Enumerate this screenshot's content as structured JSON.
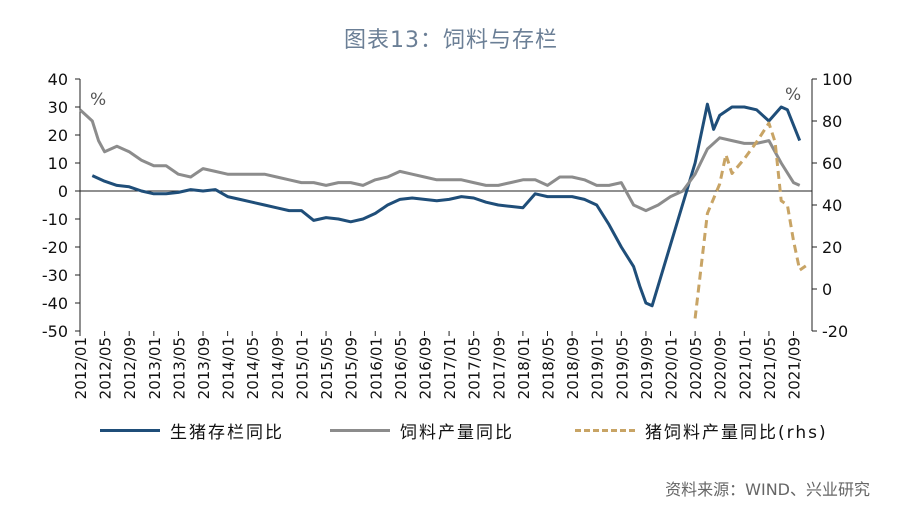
{
  "title": "图表13：饲料与存栏",
  "source": "资料来源：WIND、兴业研究",
  "colors": {
    "pig_stock": "#1f4e79",
    "feed_output": "#8c8c8c",
    "pig_feed_output": "#c8a465",
    "axis": "#222222"
  },
  "chart_data": {
    "type": "line",
    "left_axis": {
      "ylim": [
        -50,
        40
      ],
      "ticks": [
        -50,
        -40,
        -30,
        -20,
        -10,
        0,
        10,
        20,
        30,
        40
      ],
      "unit_label": "%"
    },
    "right_axis": {
      "ylim": [
        -20,
        100
      ],
      "ticks": [
        -20,
        0,
        20,
        40,
        60,
        80,
        100
      ],
      "unit_label": "%"
    },
    "x_tick_labels": [
      "2012/01",
      "2012/05",
      "2012/09",
      "2013/01",
      "2013/05",
      "2013/09",
      "2014/01",
      "2014/05",
      "2014/09",
      "2015/01",
      "2015/05",
      "2015/09",
      "2016/01",
      "2016/05",
      "2016/09",
      "2017/01",
      "2017/05",
      "2017/09",
      "2018/01",
      "2018/05",
      "2018/09",
      "2019/01",
      "2019/05",
      "2019/09",
      "2020/01",
      "2020/05",
      "2020/09",
      "2021/01",
      "2021/05",
      "2021/09"
    ],
    "series": [
      {
        "name": "生猪存栏同比",
        "axis": "left",
        "style": "solid",
        "points": [
          [
            "2012/03",
            5.5
          ],
          [
            "2012/05",
            3.5
          ],
          [
            "2012/07",
            2
          ],
          [
            "2012/09",
            1.5
          ],
          [
            "2012/11",
            0
          ],
          [
            "2013/01",
            -1
          ],
          [
            "2013/03",
            -1
          ],
          [
            "2013/05",
            -0.5
          ],
          [
            "2013/07",
            0.5
          ],
          [
            "2013/09",
            0
          ],
          [
            "2013/11",
            0.5
          ],
          [
            "2014/01",
            -2
          ],
          [
            "2014/03",
            -3
          ],
          [
            "2014/05",
            -4
          ],
          [
            "2014/07",
            -5
          ],
          [
            "2014/09",
            -6
          ],
          [
            "2014/11",
            -7
          ],
          [
            "2015/01",
            -7
          ],
          [
            "2015/03",
            -10.5
          ],
          [
            "2015/05",
            -9.5
          ],
          [
            "2015/07",
            -10
          ],
          [
            "2015/09",
            -11
          ],
          [
            "2015/11",
            -10
          ],
          [
            "2016/01",
            -8
          ],
          [
            "2016/03",
            -5
          ],
          [
            "2016/05",
            -3
          ],
          [
            "2016/07",
            -2.5
          ],
          [
            "2016/09",
            -3
          ],
          [
            "2016/11",
            -3.5
          ],
          [
            "2017/01",
            -3
          ],
          [
            "2017/03",
            -2
          ],
          [
            "2017/05",
            -2.5
          ],
          [
            "2017/07",
            -4
          ],
          [
            "2017/09",
            -5
          ],
          [
            "2017/11",
            -5.5
          ],
          [
            "2018/01",
            -6
          ],
          [
            "2018/03",
            -1
          ],
          [
            "2018/05",
            -2
          ],
          [
            "2018/07",
            -2
          ],
          [
            "2018/09",
            -2
          ],
          [
            "2018/11",
            -3
          ],
          [
            "2019/01",
            -5
          ],
          [
            "2019/03",
            -12
          ],
          [
            "2019/05",
            -20
          ],
          [
            "2019/07",
            -27
          ],
          [
            "2019/08",
            -34
          ],
          [
            "2019/09",
            -40
          ],
          [
            "2019/10",
            -41
          ],
          [
            "2020/05",
            10
          ],
          [
            "2020/07",
            31
          ],
          [
            "2020/08",
            22
          ],
          [
            "2020/09",
            27
          ],
          [
            "2020/11",
            30
          ],
          [
            "2021/01",
            30
          ],
          [
            "2021/03",
            29
          ],
          [
            "2021/05",
            25
          ],
          [
            "2021/07",
            30
          ],
          [
            "2021/08",
            29
          ],
          [
            "2021/10",
            18
          ]
        ]
      },
      {
        "name": "饲料产量同比",
        "axis": "left",
        "style": "solid",
        "points": [
          [
            "2012/01",
            29
          ],
          [
            "2012/02",
            27
          ],
          [
            "2012/03",
            25
          ],
          [
            "2012/04",
            18
          ],
          [
            "2012/05",
            14
          ],
          [
            "2012/07",
            16
          ],
          [
            "2012/09",
            14
          ],
          [
            "2012/11",
            11
          ],
          [
            "2013/01",
            9
          ],
          [
            "2013/03",
            9
          ],
          [
            "2013/05",
            6
          ],
          [
            "2013/07",
            5
          ],
          [
            "2013/09",
            8
          ],
          [
            "2013/11",
            7
          ],
          [
            "2014/01",
            6
          ],
          [
            "2014/03",
            6
          ],
          [
            "2014/05",
            6
          ],
          [
            "2014/07",
            6
          ],
          [
            "2014/09",
            5
          ],
          [
            "2014/11",
            4
          ],
          [
            "2015/01",
            3
          ],
          [
            "2015/03",
            3
          ],
          [
            "2015/05",
            2
          ],
          [
            "2015/07",
            3
          ],
          [
            "2015/09",
            3
          ],
          [
            "2015/11",
            2
          ],
          [
            "2016/01",
            4
          ],
          [
            "2016/03",
            5
          ],
          [
            "2016/05",
            7
          ],
          [
            "2016/07",
            6
          ],
          [
            "2016/09",
            5
          ],
          [
            "2016/11",
            4
          ],
          [
            "2017/01",
            4
          ],
          [
            "2017/03",
            4
          ],
          [
            "2017/05",
            3
          ],
          [
            "2017/07",
            2
          ],
          [
            "2017/09",
            2
          ],
          [
            "2017/11",
            3
          ],
          [
            "2018/01",
            4
          ],
          [
            "2018/03",
            4
          ],
          [
            "2018/05",
            2
          ],
          [
            "2018/07",
            5
          ],
          [
            "2018/09",
            5
          ],
          [
            "2018/11",
            4
          ],
          [
            "2019/01",
            2
          ],
          [
            "2019/03",
            2
          ],
          [
            "2019/05",
            3
          ],
          [
            "2019/07",
            -5
          ],
          [
            "2019/09",
            -7
          ],
          [
            "2019/11",
            -5
          ],
          [
            "2020/01",
            -2
          ],
          [
            "2020/03",
            0
          ],
          [
            "2020/05",
            6
          ],
          [
            "2020/07",
            15
          ],
          [
            "2020/09",
            19
          ],
          [
            "2020/11",
            18
          ],
          [
            "2021/01",
            17
          ],
          [
            "2021/03",
            17
          ],
          [
            "2021/05",
            18
          ],
          [
            "2021/07",
            10
          ],
          [
            "2021/09",
            3
          ],
          [
            "2021/10",
            2
          ]
        ]
      },
      {
        "name": "猪饲料产量同比(rhs)",
        "axis": "right",
        "style": "dashed",
        "points": [
          [
            "2020/05",
            -14
          ],
          [
            "2020/07",
            36
          ],
          [
            "2020/09",
            50
          ],
          [
            "2020/10",
            64
          ],
          [
            "2020/11",
            55
          ],
          [
            "2021/01",
            62
          ],
          [
            "2021/03",
            70
          ],
          [
            "2021/05",
            79
          ],
          [
            "2021/06",
            70
          ],
          [
            "2021/07",
            42
          ],
          [
            "2021/08",
            40
          ],
          [
            "2021/09",
            23
          ],
          [
            "2021/10",
            9
          ],
          [
            "2021/11",
            11
          ]
        ]
      }
    ]
  }
}
